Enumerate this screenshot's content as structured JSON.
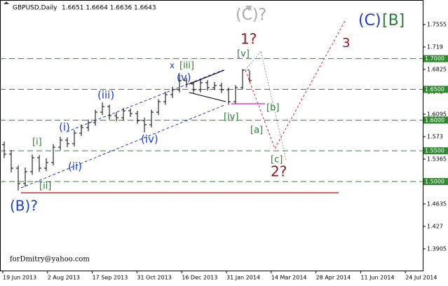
{
  "chart_data": {
    "type": "ohlc",
    "title": "GBPUSD,Daily",
    "subtitle": "1.6651 1.6664 1.6636 1.6643",
    "credit": "forDmitry@yahoo.com",
    "color": "#000000",
    "open": [
      1.56,
      1.5445,
      1.5217,
      1.4966,
      1.516,
      1.5388,
      1.5217,
      1.5308,
      1.5559,
      1.5673,
      1.5616,
      1.5787,
      1.5878,
      1.5958,
      1.6129,
      1.622,
      1.6072,
      1.6038,
      1.6152,
      1.6106,
      1.5992,
      1.5924,
      1.6129,
      1.63,
      1.6414,
      1.6494,
      1.6643,
      1.6585,
      1.6494,
      1.6608,
      1.6528,
      1.6563,
      1.6494,
      1.63,
      1.6528,
      1.6814
    ],
    "high": [
      1.565,
      1.551,
      1.526,
      1.523,
      1.544,
      1.543,
      1.538,
      1.561,
      1.573,
      1.572,
      1.584,
      1.593,
      1.601,
      1.617,
      1.629,
      1.625,
      1.613,
      1.62,
      1.619,
      1.615,
      1.604,
      1.617,
      1.634,
      1.646,
      1.654,
      1.674,
      1.669,
      1.663,
      1.666,
      1.665,
      1.662,
      1.661,
      1.653,
      1.657,
      1.683,
      1.68
    ],
    "low": [
      1.538,
      1.515,
      1.4855,
      1.492,
      1.511,
      1.516,
      1.517,
      1.526,
      1.551,
      1.556,
      1.557,
      1.574,
      1.582,
      1.591,
      1.608,
      1.601,
      1.598,
      1.599,
      1.605,
      1.594,
      1.58,
      1.588,
      1.608,
      1.625,
      1.636,
      1.645,
      1.653,
      1.644,
      1.645,
      1.648,
      1.649,
      1.644,
      1.625,
      1.627,
      1.65,
      1.662
    ],
    "close": [
      1.5445,
      1.5217,
      1.4966,
      1.516,
      1.5388,
      1.5217,
      1.5308,
      1.5559,
      1.5673,
      1.5616,
      1.5787,
      1.5878,
      1.5958,
      1.6129,
      1.622,
      1.6072,
      1.6038,
      1.6152,
      1.6106,
      1.5992,
      1.5924,
      1.6129,
      1.63,
      1.6414,
      1.6494,
      1.6643,
      1.6585,
      1.6494,
      1.6608,
      1.6528,
      1.6563,
      1.6494,
      1.63,
      1.6528,
      1.6814,
      1.6643
    ],
    "x_labels": [
      "19 Jun 2013",
      "2 Aug 2013",
      "17 Sep 2013",
      "31 Oct 2013",
      "16 Dec 2013",
      "31 Jan 2014",
      "14 Mar 2014",
      "28 Apr 2014",
      "11 Jun 2014",
      "24 Jul 2014"
    ],
    "ylim": [
      1.3551,
      1.7863
    ],
    "yticks": [
      1.7555,
      1.719,
      1.6825,
      1.646,
      1.6095,
      1.573,
      1.5365,
      1.4635,
      1.427,
      1.3905
    ],
    "levels": [
      {
        "value": 1.7,
        "label": "1.7000"
      },
      {
        "value": 1.65,
        "label": "1.6500"
      },
      {
        "value": 1.6,
        "label": "1.6000"
      },
      {
        "value": 1.55,
        "label": "1.5500"
      },
      {
        "value": 1.5,
        "label": "1.5000"
      }
    ],
    "level_color": "#2e8b2e",
    "annotations": [
      {
        "text": "(C)?",
        "color": "#a9a9a9"
      },
      {
        "text": "1?",
        "color": "#8b1a1a"
      },
      {
        "text": "[v]",
        "color": "#2e7d32"
      },
      {
        "text": "x",
        "color": "#1f3fbf"
      },
      {
        "text": "[iii]",
        "color": "#2e7d32"
      },
      {
        "text": "(v)",
        "color": "#1f3fbf"
      },
      {
        "text": "(iii)",
        "color": "#1f3fbf"
      },
      {
        "text": "(i)",
        "color": "#1f3fbf"
      },
      {
        "text": "(ii)",
        "color": "#1f3fbf"
      },
      {
        "text": "(iv)",
        "color": "#1f3fbf"
      },
      {
        "text": "[i]",
        "color": "#2e7d32"
      },
      {
        "text": "[ii]",
        "color": "#2e7d32"
      },
      {
        "text": "(B)?",
        "color": "#1f3fbf"
      },
      {
        "text": "[iv]",
        "color": "#2e7d32"
      },
      {
        "text": "[b]",
        "color": "#2e7d32"
      },
      {
        "text": "[a]",
        "color": "#2e7d32"
      },
      {
        "text": "[c]",
        "color": "#2e7d32"
      },
      {
        "text": "2?",
        "color": "#8b1a1a"
      },
      {
        "text": "3",
        "color": "#8b1a1a"
      },
      {
        "text": "(C)",
        "color": "#1f3fbf"
      },
      {
        "text": "[B]",
        "color": "#2e7d32"
      }
    ]
  }
}
